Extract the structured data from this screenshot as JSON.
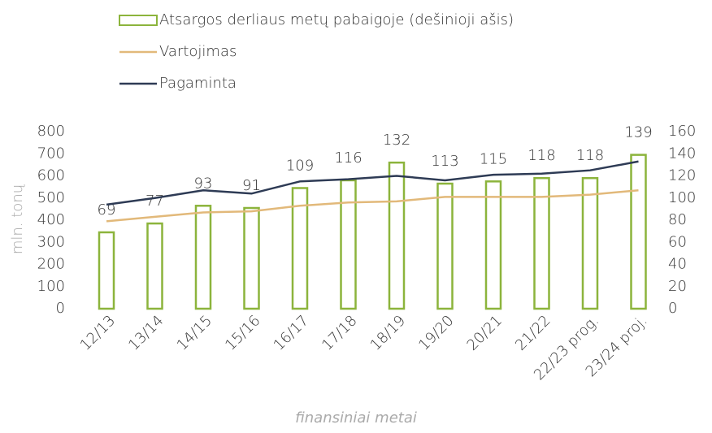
{
  "chart_data": {
    "type": "bar",
    "categories": [
      "12/13",
      "13/14",
      "14/15",
      "15/16",
      "16/17",
      "17/18",
      "18/19",
      "19/20",
      "20/21",
      "21/22",
      "22/23 prog.",
      "23/24 proj."
    ],
    "series": [
      {
        "name": "Atsargos derliaus metų pabaigoje (dešinioji ašis)",
        "type": "bar",
        "axis": "y2",
        "color": "#8cb43c",
        "values": [
          69,
          77,
          93,
          91,
          109,
          116,
          132,
          113,
          115,
          118,
          118,
          139
        ]
      },
      {
        "name": "Vartojimas",
        "type": "line",
        "color": "#e2b97a",
        "values": [
          395,
          415,
          435,
          440,
          465,
          480,
          485,
          505,
          505,
          505,
          515,
          535
        ]
      },
      {
        "name": "Pagaminta",
        "type": "line",
        "color": "#2e3b55",
        "values": [
          470,
          500,
          535,
          520,
          575,
          585,
          600,
          580,
          605,
          610,
          625,
          665
        ]
      }
    ],
    "ylabel": "mln. tonų",
    "xlabel": "finansiniai metai",
    "ylim": [
      0,
      800
    ],
    "yticks": [
      0,
      100,
      200,
      300,
      400,
      500,
      600,
      700,
      800
    ],
    "y2lim": [
      0,
      160
    ],
    "y2ticks": [
      0,
      20,
      40,
      60,
      80,
      100,
      120,
      140,
      160
    ]
  }
}
